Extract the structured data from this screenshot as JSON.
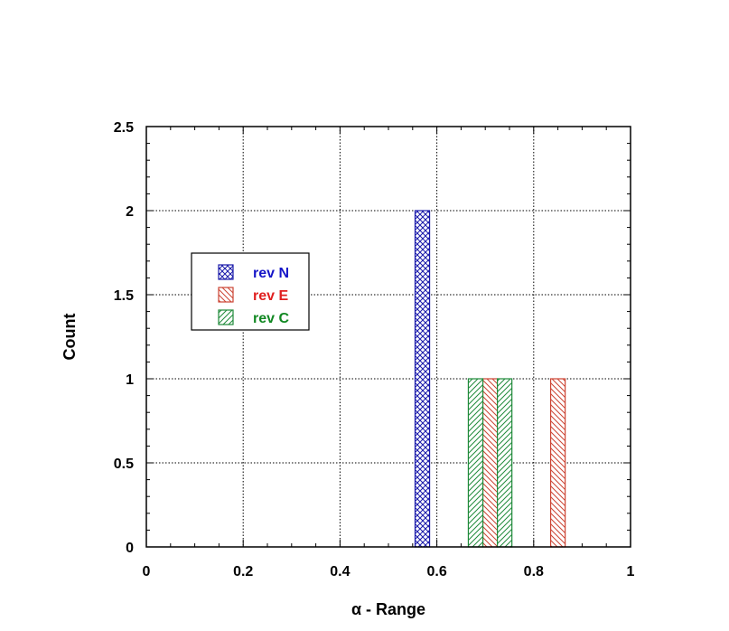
{
  "chart_data": {
    "type": "bar",
    "xlabel": "α - Range",
    "ylabel": "Count",
    "xlim": [
      0,
      1
    ],
    "ylim": [
      0,
      2.5
    ],
    "x_ticks": [
      0,
      0.2,
      0.4,
      0.6,
      0.8,
      1
    ],
    "x_tick_labels": [
      "0",
      "0.2",
      "0.4",
      "0.6",
      "0.8",
      "1"
    ],
    "y_ticks": [
      0,
      0.5,
      1,
      1.5,
      2,
      2.5
    ],
    "y_tick_labels": [
      "0",
      "0.5",
      "1",
      "1.5",
      "2",
      "2.5"
    ],
    "grid": true,
    "legend_position": "left",
    "bar_width": 0.03,
    "series": [
      {
        "name": "rev N",
        "color": "#1a1aaa",
        "text_color": "#1515c8",
        "pattern": "crosshatch",
        "points": [
          {
            "x": 0.57,
            "y": 2
          }
        ]
      },
      {
        "name": "rev E",
        "color": "#cc4433",
        "text_color": "#e02020",
        "pattern": "backslash",
        "points": [
          {
            "x": 0.71,
            "y": 1
          },
          {
            "x": 0.85,
            "y": 1
          }
        ]
      },
      {
        "name": "rev C",
        "color": "#1f8a3a",
        "text_color": "#118822",
        "pattern": "slash",
        "points": [
          {
            "x": 0.68,
            "y": 1
          },
          {
            "x": 0.74,
            "y": 1
          }
        ]
      }
    ]
  }
}
